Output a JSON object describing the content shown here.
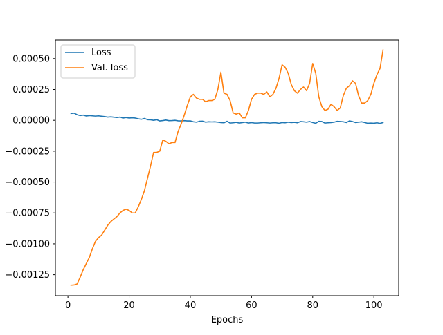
{
  "chart_data": {
    "type": "line",
    "title": "",
    "xlabel": "Epochs",
    "ylabel": "",
    "xlim": [
      -4.1,
      108.1
    ],
    "ylim": [
      -0.00142,
      0.00065
    ],
    "grid": false,
    "legend_position": "upper-left",
    "x_ticks": [
      0,
      20,
      40,
      60,
      80,
      100
    ],
    "x_tick_labels": [
      "0",
      "20",
      "40",
      "60",
      "80",
      "100"
    ],
    "y_ticks": [
      -0.00125,
      -0.001,
      -0.00075,
      -0.0005,
      -0.00025,
      0,
      0.00025,
      0.0005
    ],
    "y_tick_labels": [
      "−0.00125",
      "−0.00100",
      "−0.00075",
      "−0.00050",
      "−0.00025",
      "0.00000",
      "0.00025",
      "0.00050"
    ],
    "x": [
      1,
      2,
      3,
      4,
      5,
      6,
      7,
      8,
      9,
      10,
      11,
      12,
      13,
      14,
      15,
      16,
      17,
      18,
      19,
      20,
      21,
      22,
      23,
      24,
      25,
      26,
      27,
      28,
      29,
      30,
      31,
      32,
      33,
      34,
      35,
      36,
      37,
      38,
      39,
      40,
      41,
      42,
      43,
      44,
      45,
      46,
      47,
      48,
      49,
      50,
      51,
      52,
      53,
      54,
      55,
      56,
      57,
      58,
      59,
      60,
      61,
      62,
      63,
      64,
      65,
      66,
      67,
      68,
      69,
      70,
      71,
      72,
      73,
      74,
      75,
      76,
      77,
      78,
      79,
      80,
      81,
      82,
      83,
      84,
      85,
      86,
      87,
      88,
      89,
      90,
      91,
      92,
      93,
      94,
      95,
      96,
      97,
      98,
      99,
      100,
      101,
      102,
      103
    ],
    "series": [
      {
        "name": "Loss",
        "color": "#1f77b4",
        "values": [
          5.5e-05,
          5.8e-05,
          4.5e-05,
          3.8e-05,
          4.2e-05,
          3.5e-05,
          3.8e-05,
          3.6e-05,
          3.4e-05,
          3.6e-05,
          3.3e-05,
          3e-05,
          2.6e-05,
          2.8e-05,
          2.5e-05,
          2.2e-05,
          2.6e-05,
          1.8e-05,
          2.2e-05,
          1.8e-05,
          2e-05,
          1.8e-05,
          1.2e-05,
          8e-06,
          1.5e-05,
          5e-06,
          4e-06,
          0.0,
          5e-06,
          -5e-06,
          -2e-06,
          2e-06,
          -3e-06,
          -2e-06,
          0.0,
          -4e-06,
          -5e-06,
          -3e-06,
          -5e-06,
          -5e-06,
          -1.2e-05,
          -1.5e-05,
          -8e-06,
          -7e-06,
          -1.5e-05,
          -1.2e-05,
          -1.3e-05,
          -1.2e-05,
          -1.5e-05,
          -1.8e-05,
          -2e-05,
          -8e-06,
          -2.2e-05,
          -2e-05,
          -1.6e-05,
          -2.2e-05,
          -1.8e-05,
          -1.5e-05,
          -2.2e-05,
          -1.8e-05,
          -2.2e-05,
          -2.2e-05,
          -2e-05,
          -1.8e-05,
          -2e-05,
          -2.2e-05,
          -2e-05,
          -2e-05,
          -2.4e-05,
          -1.8e-05,
          -2e-05,
          -1.5e-05,
          -1.8e-05,
          -1.6e-05,
          -2e-05,
          -1e-05,
          -1.2e-05,
          -1.5e-05,
          -1e-05,
          -1.8e-05,
          -2.4e-05,
          -8e-06,
          -1e-05,
          -2.2e-05,
          -2e-05,
          -1.8e-05,
          -1.5e-05,
          -8e-06,
          -1e-05,
          -1.2e-05,
          -1.8e-05,
          -5e-06,
          -1e-05,
          -1.8e-05,
          -1.5e-05,
          -1.2e-05,
          -1.8e-05,
          -2.4e-05,
          -2.2e-05,
          -2.4e-05,
          -2e-05,
          -2.5e-05,
          -1.8e-05
        ]
      },
      {
        "name": "Val. loss",
        "color": "#ff7f0e",
        "values": [
          -0.001335,
          -0.001333,
          -0.001325,
          -0.00127,
          -0.00121,
          -0.00116,
          -0.00111,
          -0.00104,
          -0.00098,
          -0.00095,
          -0.00093,
          -0.00089,
          -0.00085,
          -0.00082,
          -0.0008,
          -0.00078,
          -0.00075,
          -0.00073,
          -0.00072,
          -0.00073,
          -0.00075,
          -0.00075,
          -0.0007,
          -0.00064,
          -0.00057,
          -0.00047,
          -0.00037,
          -0.00026,
          -0.00026,
          -0.00025,
          -0.00016,
          -0.00017,
          -0.00019,
          -0.00018,
          -0.00018,
          -9e-05,
          -3e-05,
          4e-05,
          0.00012,
          0.00019,
          0.00021,
          0.00018,
          0.00017,
          0.00017,
          0.00015,
          0.00016,
          0.00016,
          0.00017,
          0.00025,
          0.00039,
          0.00022,
          0.00021,
          0.00016,
          6e-05,
          5e-05,
          6e-05,
          2e-05,
          2e-05,
          8e-05,
          0.00017,
          0.00021,
          0.00022,
          0.00022,
          0.00021,
          0.00023,
          0.00019,
          0.00021,
          0.00026,
          0.00034,
          0.00045,
          0.00043,
          0.00038,
          0.00029,
          0.00024,
          0.00022,
          0.00025,
          0.00027,
          0.00024,
          0.0003,
          0.00046,
          0.00038,
          0.00019,
          0.00011,
          8e-05,
          9e-05,
          0.00013,
          0.00011,
          8e-05,
          0.0001,
          0.0002,
          0.00026,
          0.00028,
          0.00032,
          0.0003,
          0.0002,
          0.00014,
          0.00014,
          0.00016,
          0.00021,
          0.0003,
          0.00037,
          0.00042,
          0.00057
        ]
      }
    ]
  }
}
